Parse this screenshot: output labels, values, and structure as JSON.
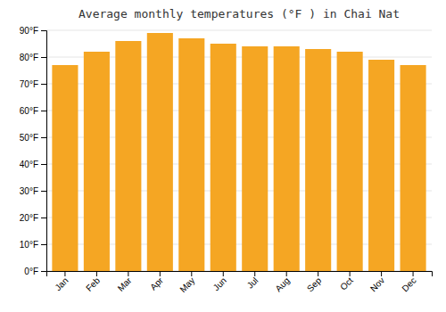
{
  "chart_data": {
    "type": "bar",
    "title": "Average monthly temperatures (°F ) in Chai Nat",
    "categories": [
      "Jan",
      "Feb",
      "Mar",
      "Apr",
      "May",
      "Jun",
      "Jul",
      "Aug",
      "Sep",
      "Oct",
      "Nov",
      "Dec"
    ],
    "values": [
      77,
      82,
      86,
      89,
      87,
      85,
      84,
      84,
      83,
      82,
      79,
      77
    ],
    "color": "#F5A623",
    "ylim": [
      0,
      90
    ],
    "yticks": [
      {
        "value": 0,
        "label": "0°F"
      },
      {
        "value": 10,
        "label": "10°F"
      },
      {
        "value": 20,
        "label": "20°F"
      },
      {
        "value": 30,
        "label": "30°F"
      },
      {
        "value": 40,
        "label": "40°F"
      },
      {
        "value": 50,
        "label": "50°F"
      },
      {
        "value": 60,
        "label": "60°F"
      },
      {
        "value": 70,
        "label": "70°F"
      },
      {
        "value": 80,
        "label": "80°F"
      },
      {
        "value": 90,
        "label": "90°F"
      }
    ],
    "grid": true
  }
}
